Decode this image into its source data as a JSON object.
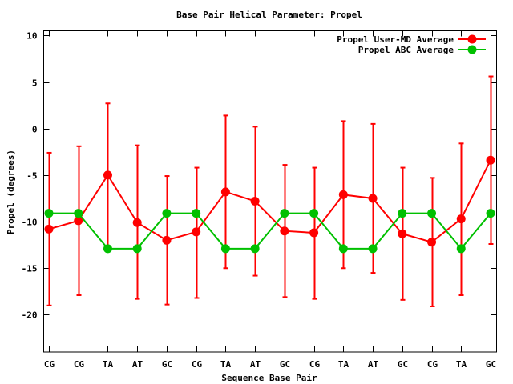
{
  "chart_data": {
    "type": "line",
    "title": "Base Pair Helical Parameter: Propel",
    "xlabel": "Sequence Base Pair",
    "ylabel": "Propel (degrees)",
    "categories": [
      "CG",
      "CG",
      "TA",
      "AT",
      "GC",
      "CG",
      "TA",
      "AT",
      "GC",
      "CG",
      "TA",
      "AT",
      "GC",
      "CG",
      "TA",
      "GC"
    ],
    "ylim": [
      -24,
      10.5
    ],
    "yticks": [
      10,
      5,
      0,
      -5,
      -10,
      -15,
      -20
    ],
    "grid": false,
    "legend_position": "top-right",
    "series": [
      {
        "name": "Propel User-MD Average",
        "color": "#ff0000",
        "values": [
          -10.8,
          -9.9,
          -5.0,
          -10.1,
          -12.0,
          -11.1,
          -6.8,
          -7.8,
          -11.0,
          -11.2,
          -7.1,
          -7.5,
          -11.3,
          -12.2,
          -9.7,
          -3.4
        ],
        "error_upper": [
          -2.6,
          -1.9,
          2.7,
          -1.8,
          -5.1,
          -4.2,
          1.4,
          0.2,
          -3.9,
          -4.2,
          0.8,
          0.5,
          -4.2,
          -5.3,
          -1.6,
          5.6
        ],
        "error_lower": [
          -19.0,
          -17.9,
          -12.7,
          -18.3,
          -18.9,
          -18.2,
          -15.0,
          -15.8,
          -18.1,
          -18.3,
          -15.0,
          -15.5,
          -18.4,
          -19.1,
          -17.9,
          -12.4
        ]
      },
      {
        "name": "Propel ABC Average",
        "color": "#00c000",
        "values": [
          -9.1,
          -9.1,
          -12.9,
          -12.9,
          -9.1,
          -9.1,
          -12.9,
          -12.9,
          -9.1,
          -9.1,
          -12.9,
          -12.9,
          -9.1,
          -9.1,
          -12.9,
          -9.1
        ]
      }
    ]
  }
}
